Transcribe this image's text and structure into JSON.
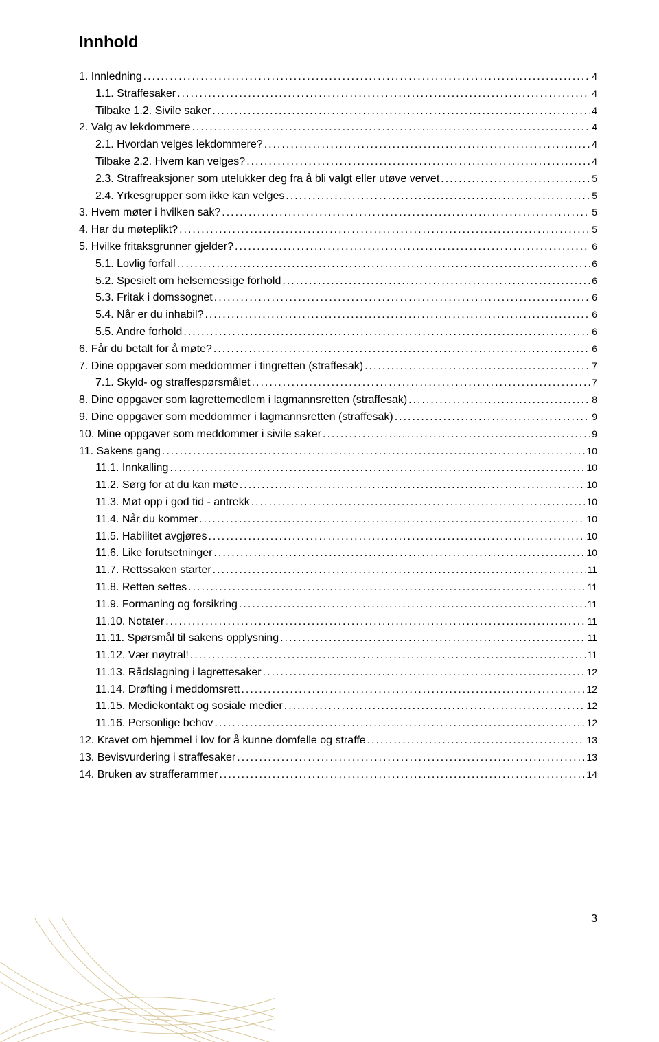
{
  "title": "Innhold",
  "page_number": "3",
  "toc": [
    {
      "label": "1. Innledning",
      "page": "4",
      "indent": 0
    },
    {
      "label": "1.1. Straffesaker",
      "page": "4",
      "indent": 1
    },
    {
      "label": "Tilbake 1.2. Sivile saker",
      "page": "4",
      "indent": 1
    },
    {
      "label": "2. Valg av lekdommere",
      "page": "4",
      "indent": 0
    },
    {
      "label": "2.1. Hvordan velges lekdommere?",
      "page": "4",
      "indent": 1
    },
    {
      "label": "Tilbake  2.2. Hvem kan velges?",
      "page": "4",
      "indent": 1
    },
    {
      "label": "2.3. Straffreaksjoner som utelukker deg fra å bli valgt eller utøve vervet",
      "page": "5",
      "indent": 1
    },
    {
      "label": "2.4. Yrkesgrupper som ikke kan velges",
      "page": "5",
      "indent": 1
    },
    {
      "label": "3. Hvem møter i hvilken sak?",
      "page": "5",
      "indent": 0
    },
    {
      "label": "4. Har du møteplikt?",
      "page": "5",
      "indent": 0
    },
    {
      "label": "5. Hvilke fritaksgrunner gjelder?",
      "page": "6",
      "indent": 0
    },
    {
      "label": "5.1. Lovlig forfall",
      "page": "6",
      "indent": 1
    },
    {
      "label": "5.2. Spesielt om helsemessige forhold",
      "page": "6",
      "indent": 1
    },
    {
      "label": "5.3. Fritak i domssognet",
      "page": "6",
      "indent": 1
    },
    {
      "label": "5.4. Når er du inhabil? ",
      "page": "6",
      "indent": 1
    },
    {
      "label": "5.5. Andre forhold",
      "page": "6",
      "indent": 1
    },
    {
      "label": "6. Får du betalt for å møte?",
      "page": "6",
      "indent": 0
    },
    {
      "label": "7. Dine oppgaver som meddommer i tingretten (straffesak)",
      "page": "7",
      "indent": 0
    },
    {
      "label": "7.1. Skyld- og straffespørsmålet",
      "page": "7",
      "indent": 1
    },
    {
      "label": "8. Dine oppgaver som lagrettemedlem i lagmannsretten (straffesak)",
      "page": "8",
      "indent": 0
    },
    {
      "label": "9. Dine oppgaver som meddommer i lagmannsretten (straffesak)",
      "page": "9",
      "indent": 0
    },
    {
      "label": "10. Mine oppgaver som meddommer i sivile saker",
      "page": "9",
      "indent": 0
    },
    {
      "label": "11. Sakens gang",
      "page": "10",
      "indent": 0
    },
    {
      "label": "11.1.   Innkalling",
      "page": "10",
      "indent": 1
    },
    {
      "label": "11.2.   Sørg for at du kan møte",
      "page": "10",
      "indent": 1
    },
    {
      "label": "11.3.   Møt opp i god tid - antrekk",
      "page": "10",
      "indent": 1
    },
    {
      "label": "11.4.   Når du kommer",
      "page": "10",
      "indent": 1
    },
    {
      "label": "11.5.   Habilitet avgjøres",
      "page": "10",
      "indent": 1
    },
    {
      "label": "11.6.   Like forutsetninger",
      "page": "10",
      "indent": 1
    },
    {
      "label": "11.7.   Rettssaken starter",
      "page": "11",
      "indent": 1
    },
    {
      "label": "11.8.   Retten settes",
      "page": "11",
      "indent": 1
    },
    {
      "label": "11.9.   Formaning og forsikring",
      "page": "11",
      "indent": 1
    },
    {
      "label": "11.10. Notater",
      "page": "11",
      "indent": 1
    },
    {
      "label": "11.11. Spørsmål til sakens opplysning",
      "page": "11",
      "indent": 1
    },
    {
      "label": "11.12. Vær nøytral!",
      "page": "11",
      "indent": 1
    },
    {
      "label": "11.13. Rådslagning i lagrettesaker",
      "page": "12",
      "indent": 1
    },
    {
      "label": "11.14. Drøfting i meddomsrett",
      "page": "12",
      "indent": 1
    },
    {
      "label": "11.15. Mediekontakt og sosiale medier",
      "page": "12",
      "indent": 1
    },
    {
      "label": "11.16. Personlige behov",
      "page": "12",
      "indent": 1
    },
    {
      "label": "12. Kravet om hjemmel i lov for å kunne domfelle og straffe",
      "page": "13",
      "indent": 0
    },
    {
      "label": "13. Bevisvurdering i straffesaker",
      "page": "13",
      "indent": 0
    },
    {
      "label": "14. Bruken av strafferammer",
      "page": "14",
      "indent": 0
    }
  ],
  "decoration": {
    "line_color": "#d9c89a",
    "line_width": 1
  }
}
